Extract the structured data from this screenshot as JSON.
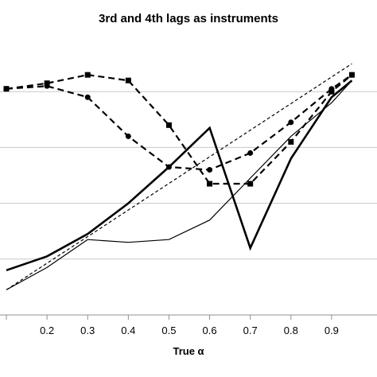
{
  "chart_data": {
    "type": "line",
    "title": "3rd and 4th lags as instruments",
    "xlabel": "True α",
    "ylabel": "",
    "x_ticks": [
      "0.2",
      "0.3",
      "0.4",
      "0.5",
      "0.6",
      "0.7",
      "0.8",
      "0.9"
    ],
    "xlim": [
      0.1,
      1.0
    ],
    "ylim": [
      0.0,
      1.0
    ],
    "legend": "none",
    "grid": "horizontal",
    "series": [
      {
        "style": "solid-thick",
        "marker": "none",
        "x": [
          0.1,
          0.2,
          0.3,
          0.4,
          0.5,
          0.6,
          0.7,
          0.8,
          0.9,
          0.95
        ],
        "y": [
          0.16,
          0.21,
          0.29,
          0.4,
          0.53,
          0.67,
          0.24,
          0.56,
          0.78,
          0.84
        ]
      },
      {
        "style": "solid-thin",
        "marker": "none",
        "x": [
          0.1,
          0.2,
          0.3,
          0.4,
          0.5,
          0.6,
          0.7,
          0.8,
          0.9,
          0.95
        ],
        "y": [
          0.09,
          0.17,
          0.27,
          0.26,
          0.27,
          0.34,
          0.49,
          0.64,
          0.76,
          0.84
        ]
      },
      {
        "style": "dashed-fine",
        "marker": "none",
        "x": [
          0.1,
          0.95
        ],
        "y": [
          0.09,
          0.9
        ]
      },
      {
        "style": "dashed-thick",
        "marker": "square",
        "x": [
          0.1,
          0.2,
          0.3,
          0.4,
          0.5,
          0.6,
          0.7,
          0.8,
          0.9,
          0.95
        ],
        "y": [
          0.81,
          0.83,
          0.86,
          0.84,
          0.68,
          0.47,
          0.47,
          0.62,
          0.8,
          0.86
        ]
      },
      {
        "style": "dashed-thick",
        "marker": "circle",
        "x": [
          0.1,
          0.2,
          0.3,
          0.4,
          0.5,
          0.6,
          0.7,
          0.8,
          0.9,
          0.95
        ],
        "y": [
          0.81,
          0.82,
          0.78,
          0.64,
          0.53,
          0.52,
          0.58,
          0.69,
          0.81,
          0.86
        ]
      }
    ]
  }
}
